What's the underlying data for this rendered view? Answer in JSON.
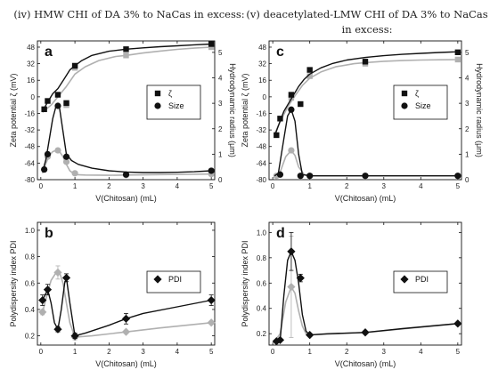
{
  "titles": {
    "left": "(iv) HMW CHI of DA 3% to NaCas in excess:",
    "right_line1": "(v) deacetylated-LMW CHI of DA 3% to NaCas",
    "right_line2": "in excess:"
  },
  "chart_data": [
    {
      "id": "a",
      "type": "line",
      "panel_label": "a",
      "xlabel": "V(Chitosan) (mL)",
      "ylabel": "Zeta potential ζ (mV)",
      "ylabel_right": "Hydrodynamic radius (μm)",
      "xlim": [
        -0.1,
        5.1
      ],
      "ylim": [
        -80,
        54
      ],
      "ylim_right": [
        0,
        5.45
      ],
      "xticks": [
        0,
        1,
        2,
        3,
        4,
        5
      ],
      "yticks": [
        -80,
        -64,
        -48,
        -32,
        -16,
        0,
        16,
        32,
        48
      ],
      "yticks_right": [
        0,
        1,
        2,
        3,
        4,
        5
      ],
      "legend": {
        "position": "center-right",
        "entries": [
          {
            "marker": "square",
            "label": "ζ"
          },
          {
            "marker": "circle",
            "label": "Size"
          }
        ]
      },
      "series": [
        {
          "name": "ζ",
          "axis": "left",
          "marker": "square",
          "color": "#111111",
          "x": [
            0.1,
            0.2,
            0.5,
            0.75,
            1.0,
            2.5,
            5.0
          ],
          "y": [
            -12,
            -4,
            2,
            -6,
            30,
            46,
            51
          ],
          "yerr": [
            1.5,
            1.5,
            1.5,
            1.5,
            1.5,
            1.2,
            1.2
          ],
          "curve_x": [
            0.05,
            0.2,
            0.35,
            0.5,
            0.7,
            0.85,
            1.0,
            1.2,
            1.5,
            2.0,
            2.5,
            3.0,
            3.5,
            4.0,
            4.5,
            5.0
          ],
          "curve_y": [
            -14,
            -5,
            3,
            8,
            18,
            26,
            30,
            35,
            40,
            44,
            46,
            47.3,
            48.4,
            49.3,
            50.2,
            51
          ]
        },
        {
          "name": "ζ (light)",
          "axis": "left",
          "marker": "square",
          "color": "#b0b0b0",
          "x": [
            0.75,
            1.0,
            2.5,
            5.0
          ],
          "y": [
            -8,
            28,
            40,
            48
          ],
          "curve_x": [
            0.05,
            0.3,
            0.5,
            0.75,
            1.0,
            1.3,
            1.7,
            2.2,
            2.5,
            3.0,
            3.5,
            4.0,
            4.5,
            5.0
          ],
          "curve_y": [
            -15,
            -8,
            0,
            10,
            22,
            29,
            35,
            39,
            40,
            42.3,
            44.2,
            45.8,
            47,
            48
          ]
        },
        {
          "name": "Size",
          "axis": "right",
          "marker": "circle",
          "color": "#111111",
          "x": [
            0.1,
            0.2,
            0.5,
            0.75,
            2.5,
            5.0
          ],
          "y": [
            0.4,
            1.0,
            2.9,
            0.9,
            0.2,
            0.35
          ],
          "curve_x": [
            0.05,
            0.15,
            0.25,
            0.35,
            0.45,
            0.5,
            0.55,
            0.65,
            0.75,
            0.9,
            1.1,
            1.5,
            2.0,
            2.5,
            3.0,
            3.5,
            4.0,
            4.5,
            5.0
          ],
          "curve_y": [
            0.3,
            0.8,
            1.6,
            2.4,
            2.9,
            3.0,
            2.8,
            1.9,
            1.0,
            0.75,
            0.6,
            0.45,
            0.35,
            0.3,
            0.28,
            0.28,
            0.29,
            0.31,
            0.35
          ]
        },
        {
          "name": "Size (light)",
          "axis": "right",
          "marker": "circle",
          "color": "#b0b0b0",
          "x": [
            0.1,
            0.2,
            0.5,
            0.75,
            1.0,
            2.5,
            5.0
          ],
          "y": [
            0.4,
            0.9,
            1.15,
            0.7,
            0.25,
            0.18,
            0.22
          ],
          "curve_x": [
            0.05,
            0.15,
            0.25,
            0.35,
            0.45,
            0.55,
            0.65,
            0.75,
            0.85,
            1.0,
            1.3,
            2.0,
            2.5,
            3.5,
            5.0
          ],
          "curve_y": [
            0.25,
            0.65,
            0.95,
            1.1,
            1.15,
            1.1,
            0.9,
            0.6,
            0.35,
            0.2,
            0.18,
            0.17,
            0.18,
            0.2,
            0.22
          ]
        }
      ]
    },
    {
      "id": "c",
      "type": "line",
      "panel_label": "c",
      "xlabel": "V(Chitosan) (mL)",
      "ylabel": "Zeta potential ζ (mV)",
      "ylabel_right": "Hydrodynamic radius (μm)",
      "xlim": [
        -0.1,
        5.1
      ],
      "ylim": [
        -80,
        54
      ],
      "ylim_right": [
        0,
        5.45
      ],
      "xticks": [
        0,
        1,
        2,
        3,
        4,
        5
      ],
      "yticks": [
        -80,
        -64,
        -48,
        -32,
        -16,
        0,
        16,
        32,
        48
      ],
      "yticks_right": [
        0,
        1,
        2,
        3,
        4,
        5
      ],
      "legend": {
        "position": "center-right",
        "entries": [
          {
            "marker": "square",
            "label": "ζ"
          },
          {
            "marker": "circle",
            "label": "Size"
          }
        ]
      },
      "series": [
        {
          "name": "ζ",
          "axis": "left",
          "marker": "square",
          "color": "#111111",
          "x": [
            0.1,
            0.2,
            0.5,
            0.75,
            1.0,
            2.5,
            5.0
          ],
          "y": [
            -37,
            -21,
            2,
            -7,
            26,
            34,
            43
          ],
          "yerr": [
            2,
            2,
            2,
            2,
            2,
            1.5,
            1.5
          ],
          "curve_x": [
            0.05,
            0.15,
            0.3,
            0.5,
            0.7,
            0.85,
            1.0,
            1.3,
            1.6,
            2.0,
            2.5,
            3.0,
            3.5,
            4.0,
            4.5,
            5.0
          ],
          "curve_y": [
            -38,
            -28,
            -14,
            -2,
            10,
            17,
            22,
            28,
            32,
            35.5,
            38,
            39.7,
            41,
            42,
            42.8,
            43.5
          ]
        },
        {
          "name": "ζ (light)",
          "axis": "left",
          "marker": "square",
          "color": "#b0b0b0",
          "x": [
            0.5,
            1.0,
            2.5,
            5.0
          ],
          "y": [
            -1,
            20,
            32,
            36
          ],
          "curve_x": [
            0.05,
            0.2,
            0.4,
            0.6,
            0.8,
            1.0,
            1.3,
            1.7,
            2.2,
            2.5,
            3.0,
            3.5,
            4.0,
            4.5,
            5.0
          ],
          "curve_y": [
            -36,
            -24,
            -10,
            1,
            11,
            18,
            24,
            29,
            32,
            33,
            34.3,
            35,
            35.5,
            35.8,
            36
          ]
        },
        {
          "name": "Size",
          "axis": "right",
          "marker": "circle",
          "color": "#111111",
          "x": [
            0.2,
            0.5,
            0.75,
            1.0,
            2.5,
            5.0
          ],
          "y": [
            0.2,
            2.75,
            0.15,
            0.15,
            0.15,
            0.15
          ],
          "curve_x": [
            0.05,
            0.15,
            0.3,
            0.4,
            0.5,
            0.6,
            0.7,
            0.8,
            1.0,
            1.5,
            2.5,
            5.0
          ],
          "curve_y": [
            0.15,
            0.25,
            1.6,
            2.5,
            2.75,
            2.3,
            1.0,
            0.2,
            0.15,
            0.15,
            0.15,
            0.15
          ]
        },
        {
          "name": "Size (light)",
          "axis": "right",
          "marker": "circle",
          "color": "#b0b0b0",
          "x": [
            0.1,
            0.5,
            1.0,
            2.5,
            5.0
          ],
          "y": [
            0.15,
            1.15,
            0.15,
            0.15,
            0.15
          ],
          "curve_x": [
            0.05,
            0.2,
            0.35,
            0.5,
            0.6,
            0.7,
            0.85,
            1.0,
            2.5,
            5.0
          ],
          "curve_y": [
            0.15,
            0.3,
            0.9,
            1.15,
            0.95,
            0.5,
            0.2,
            0.15,
            0.15,
            0.15
          ]
        }
      ]
    },
    {
      "id": "b",
      "type": "line",
      "panel_label": "b",
      "xlabel": "V(Chitosan) (mL)",
      "ylabel": "Polydispersity index PDI",
      "xlim": [
        -0.1,
        5.1
      ],
      "ylim": [
        0.13,
        1.06
      ],
      "xticks": [
        0,
        1,
        2,
        3,
        4,
        5
      ],
      "yticks": [
        0.2,
        0.4,
        0.6,
        0.8,
        1.0
      ],
      "ytick_labels": [
        "0.2",
        "0.4",
        "0.6",
        "0.8",
        "1.0"
      ],
      "legend": {
        "position": "center-right",
        "entries": [
          {
            "marker": "diamond",
            "label": "PDI"
          }
        ]
      },
      "series": [
        {
          "name": "PDI",
          "marker": "diamond",
          "color": "#111111",
          "x": [
            0.05,
            0.2,
            0.5,
            0.75,
            1.0,
            2.5,
            5.0
          ],
          "y": [
            0.47,
            0.55,
            0.25,
            0.64,
            0.2,
            0.33,
            0.47
          ],
          "yerr": [
            0.04,
            0.04,
            0.02,
            0.03,
            0.02,
            0.04,
            0.04
          ],
          "curve_x": [
            0.05,
            0.2,
            0.3,
            0.4,
            0.5,
            0.6,
            0.7,
            0.75,
            0.85,
            1.0,
            1.3,
            2.0,
            2.5,
            3.0,
            4.0,
            5.0
          ],
          "curve_y": [
            0.47,
            0.55,
            0.45,
            0.3,
            0.25,
            0.4,
            0.6,
            0.64,
            0.45,
            0.2,
            0.22,
            0.28,
            0.33,
            0.37,
            0.42,
            0.47
          ]
        },
        {
          "name": "PDI (light)",
          "marker": "diamond",
          "color": "#b0b0b0",
          "x": [
            0.05,
            0.5,
            1.0,
            2.5,
            5.0
          ],
          "y": [
            0.38,
            0.68,
            0.19,
            0.23,
            0.3
          ],
          "yerr": [
            0.02,
            0.05,
            0.02,
            0.01,
            0.01
          ],
          "curve_x": [
            0.05,
            0.15,
            0.3,
            0.45,
            0.55,
            0.65,
            0.75,
            0.85,
            1.0,
            1.5,
            2.5,
            3.5,
            5.0
          ],
          "curve_y": [
            0.38,
            0.48,
            0.62,
            0.68,
            0.68,
            0.6,
            0.45,
            0.3,
            0.19,
            0.2,
            0.23,
            0.26,
            0.3
          ]
        }
      ]
    },
    {
      "id": "d",
      "type": "line",
      "panel_label": "d",
      "xlabel": "V(Chitosan) (mL)",
      "ylabel": "Polydispersity index PDI",
      "xlim": [
        -0.1,
        5.1
      ],
      "ylim": [
        0.11,
        1.08
      ],
      "xticks": [
        0,
        1,
        2,
        3,
        4,
        5
      ],
      "yticks": [
        0.2,
        0.4,
        0.6,
        0.8,
        1.0
      ],
      "ytick_labels": [
        "0.2",
        "0.4",
        "0.6",
        "0.8",
        "1.0"
      ],
      "legend": {
        "position": "center-right",
        "entries": [
          {
            "marker": "diamond",
            "label": "PDI"
          }
        ]
      },
      "series": [
        {
          "name": "PDI",
          "marker": "diamond",
          "color": "#111111",
          "x": [
            0.1,
            0.2,
            0.5,
            0.75,
            1.0,
            2.5,
            5.0
          ],
          "y": [
            0.14,
            0.15,
            0.85,
            0.64,
            0.19,
            0.21,
            0.28
          ],
          "yerr": [
            0.01,
            0.01,
            0.15,
            0.03,
            0.01,
            0.01,
            0.01
          ],
          "curve_x": [
            0.05,
            0.2,
            0.3,
            0.4,
            0.5,
            0.6,
            0.7,
            0.8,
            0.9,
            1.0,
            1.5,
            2.5,
            3.5,
            5.0
          ],
          "curve_y": [
            0.14,
            0.15,
            0.5,
            0.78,
            0.85,
            0.78,
            0.6,
            0.35,
            0.22,
            0.19,
            0.2,
            0.21,
            0.24,
            0.28
          ]
        },
        {
          "name": "PDI (light)",
          "marker": "diamond",
          "color": "#b0b0b0",
          "x": [
            0.1,
            0.5,
            1.0,
            2.5,
            5.0
          ],
          "y": [
            0.14,
            0.57,
            0.19,
            0.21,
            0.28
          ],
          "yerr": [
            0.01,
            0.4,
            0.01,
            0.01,
            0.01
          ],
          "curve_x": [
            0.05,
            0.2,
            0.35,
            0.5,
            0.6,
            0.7,
            0.8,
            0.9,
            1.0,
            2.5,
            5.0
          ],
          "curve_y": [
            0.14,
            0.2,
            0.45,
            0.57,
            0.52,
            0.38,
            0.26,
            0.2,
            0.19,
            0.21,
            0.28
          ]
        }
      ]
    }
  ]
}
